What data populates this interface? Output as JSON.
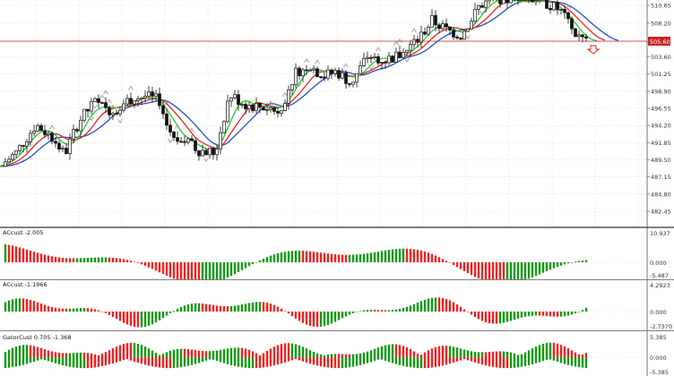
{
  "price_panel": {
    "axis_labels": [
      "510.65",
      "508.20",
      "505.60",
      "503.60",
      "501.25",
      "498.90",
      "496.55",
      "494.20",
      "491.85",
      "489.50",
      "487.15",
      "484.80",
      "482.45"
    ],
    "current_price": "505.60",
    "current_price_color": "#cc2222",
    "colors": {
      "bull_candle": "#ffffff",
      "bear_candle": "#111111",
      "fast_ma": "#22cc22",
      "mid_ma": "#ee2222",
      "slow_ma": "#1f4fcc",
      "fractal": "#999999",
      "sell_arrow": "#dd2222"
    }
  },
  "indicators": [
    {
      "label": "ACcust -2.005",
      "axis_labels": [
        "10.937",
        "0.000",
        "-5.487"
      ]
    },
    {
      "label": "ACcust -1.1966",
      "axis_labels": [
        "4.2923",
        "0.000",
        "-2.7370"
      ]
    },
    {
      "label": "GatorCust 0.705 -1.368",
      "axis_labels": [
        "5.385",
        "0.000",
        "-5.385"
      ]
    }
  ],
  "colors": {
    "up_bar": "#119911",
    "down_bar": "#ee2222",
    "grid": "#e3e3e3",
    "border": "#555555"
  }
}
